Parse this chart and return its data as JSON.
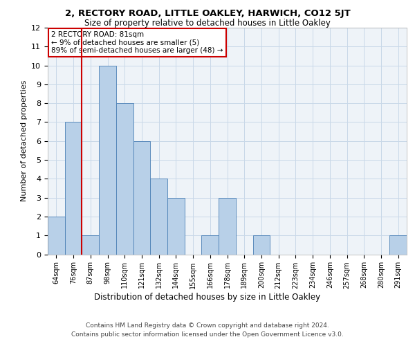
{
  "title": "2, RECTORY ROAD, LITTLE OAKLEY, HARWICH, CO12 5JT",
  "subtitle": "Size of property relative to detached houses in Little Oakley",
  "xlabel": "Distribution of detached houses by size in Little Oakley",
  "ylabel": "Number of detached properties",
  "categories": [
    "64sqm",
    "76sqm",
    "87sqm",
    "98sqm",
    "110sqm",
    "121sqm",
    "132sqm",
    "144sqm",
    "155sqm",
    "166sqm",
    "178sqm",
    "189sqm",
    "200sqm",
    "212sqm",
    "223sqm",
    "234sqm",
    "246sqm",
    "257sqm",
    "268sqm",
    "280sqm",
    "291sqm"
  ],
  "values": [
    2,
    7,
    1,
    10,
    8,
    6,
    4,
    3,
    0,
    1,
    3,
    0,
    1,
    0,
    0,
    0,
    0,
    0,
    0,
    0,
    1
  ],
  "bar_color": "#b8d0e8",
  "bar_edge_color": "#4a7fb5",
  "grid_color": "#c8d8e8",
  "background_color": "#eef3f8",
  "annotation_box_color": "#ffffff",
  "annotation_border_color": "#cc0000",
  "annotation_text_line1": "2 RECTORY ROAD: 81sqm",
  "annotation_text_line2": "← 9% of detached houses are smaller (5)",
  "annotation_text_line3": "89% of semi-detached houses are larger (48) →",
  "property_line_color": "#cc0000",
  "ylim": [
    0,
    12
  ],
  "yticks": [
    0,
    1,
    2,
    3,
    4,
    5,
    6,
    7,
    8,
    9,
    10,
    11,
    12
  ],
  "footer_line1": "Contains HM Land Registry data © Crown copyright and database right 2024.",
  "footer_line2": "Contains public sector information licensed under the Open Government Licence v3.0."
}
